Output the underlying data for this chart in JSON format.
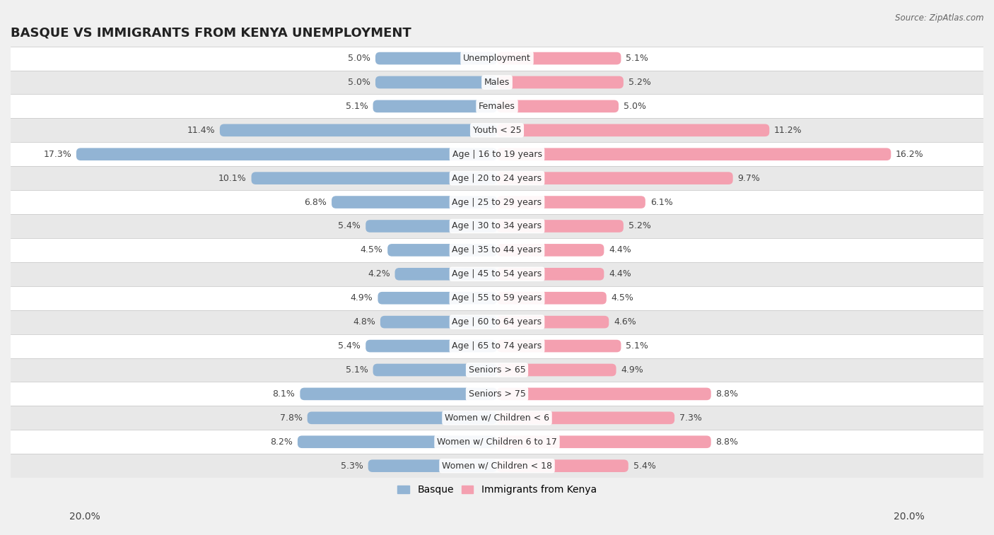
{
  "title": "BASQUE VS IMMIGRANTS FROM KENYA UNEMPLOYMENT",
  "source": "Source: ZipAtlas.com",
  "categories": [
    "Unemployment",
    "Males",
    "Females",
    "Youth < 25",
    "Age | 16 to 19 years",
    "Age | 20 to 24 years",
    "Age | 25 to 29 years",
    "Age | 30 to 34 years",
    "Age | 35 to 44 years",
    "Age | 45 to 54 years",
    "Age | 55 to 59 years",
    "Age | 60 to 64 years",
    "Age | 65 to 74 years",
    "Seniors > 65",
    "Seniors > 75",
    "Women w/ Children < 6",
    "Women w/ Children 6 to 17",
    "Women w/ Children < 18"
  ],
  "basque_values": [
    5.0,
    5.0,
    5.1,
    11.4,
    17.3,
    10.1,
    6.8,
    5.4,
    4.5,
    4.2,
    4.9,
    4.8,
    5.4,
    5.1,
    8.1,
    7.8,
    8.2,
    5.3
  ],
  "kenya_values": [
    5.1,
    5.2,
    5.0,
    11.2,
    16.2,
    9.7,
    6.1,
    5.2,
    4.4,
    4.4,
    4.5,
    4.6,
    5.1,
    4.9,
    8.8,
    7.3,
    8.8,
    5.4
  ],
  "basque_color": "#92b4d4",
  "kenya_color": "#f4a0b0",
  "background_color": "#f0f0f0",
  "row_color_odd": "#ffffff",
  "row_color_even": "#e8e8e8",
  "max_value": 20.0,
  "bar_height": 0.52,
  "label_fontsize": 9.0,
  "title_fontsize": 13,
  "legend_labels": [
    "Basque",
    "Immigrants from Kenya"
  ]
}
